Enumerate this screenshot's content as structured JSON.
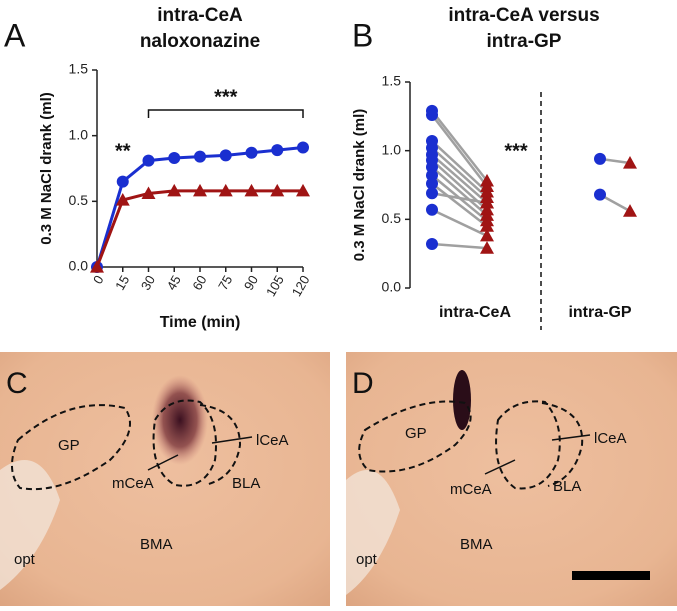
{
  "chart_data": [
    {
      "type": "line",
      "panel": "A",
      "title": [
        "intra-CeA",
        "naloxonazine"
      ],
      "x_label": "Time (min)",
      "y_label": "0.3 M NaCl drank (ml)",
      "x": [
        0,
        15,
        30,
        45,
        60,
        75,
        90,
        105,
        120
      ],
      "xlim": [
        0,
        120
      ],
      "xticks": [
        0,
        15,
        30,
        45,
        60,
        75,
        90,
        105,
        120
      ],
      "ylim": [
        0,
        1.5
      ],
      "yticks": [
        {
          "value": 0,
          "label": "0.0"
        },
        {
          "value": 0.5,
          "label": "0.5"
        },
        {
          "value": 1,
          "label": "1.0"
        },
        {
          "value": 1.5,
          "label": "1.5"
        }
      ],
      "series": [
        {
          "color": "#1a2fd0",
          "marker": "circle",
          "values": [
            0,
            0.65,
            0.81,
            0.83,
            0.84,
            0.85,
            0.87,
            0.89,
            0.91
          ]
        },
        {
          "color": "#a01414",
          "marker": "triangle",
          "values": [
            0,
            0.51,
            0.56,
            0.58,
            0.58,
            0.58,
            0.58,
            0.58,
            0.58
          ]
        }
      ],
      "annotations": [
        "**",
        "***"
      ]
    },
    {
      "type": "paired",
      "panel": "B",
      "title": [
        "intra-CeA versus",
        "intra-GP"
      ],
      "y_label": "0.3 M NaCl drank (ml)",
      "ylim": [
        0,
        1.5
      ],
      "yticks": [
        {
          "value": 0,
          "label": "0.0"
        },
        {
          "value": 0.5,
          "label": "0.5"
        },
        {
          "value": 1,
          "label": "1.0"
        },
        {
          "value": 1.5,
          "label": "1.5"
        }
      ],
      "before_color": "#1a2fd0",
      "after_color": "#a01414",
      "line_color": "#a0a0a0",
      "categories": [
        "intra-CeA",
        "intra-GP"
      ],
      "groups": [
        {
          "before": [
            1.29,
            1.26,
            1.07,
            1.02,
            0.97,
            0.93,
            0.88,
            0.82,
            0.76,
            0.69,
            0.57,
            0.32
          ],
          "after": [
            0.78,
            0.74,
            0.7,
            0.66,
            0.62,
            0.57,
            0.53,
            0.49,
            0.45,
            0.62,
            0.38,
            0.29
          ]
        },
        {
          "before": [
            0.94,
            0.68
          ],
          "after": [
            0.91,
            0.56
          ]
        }
      ],
      "annotations": [
        "***"
      ]
    }
  ],
  "photos": [
    {
      "panel": "C",
      "regions": [
        "GP",
        "mCeA",
        "lCeA",
        "BLA",
        "BMA",
        "opt"
      ]
    },
    {
      "panel": "D",
      "regions": [
        "GP",
        "mCeA",
        "lCeA",
        "BLA",
        "BMA",
        "opt"
      ]
    }
  ]
}
